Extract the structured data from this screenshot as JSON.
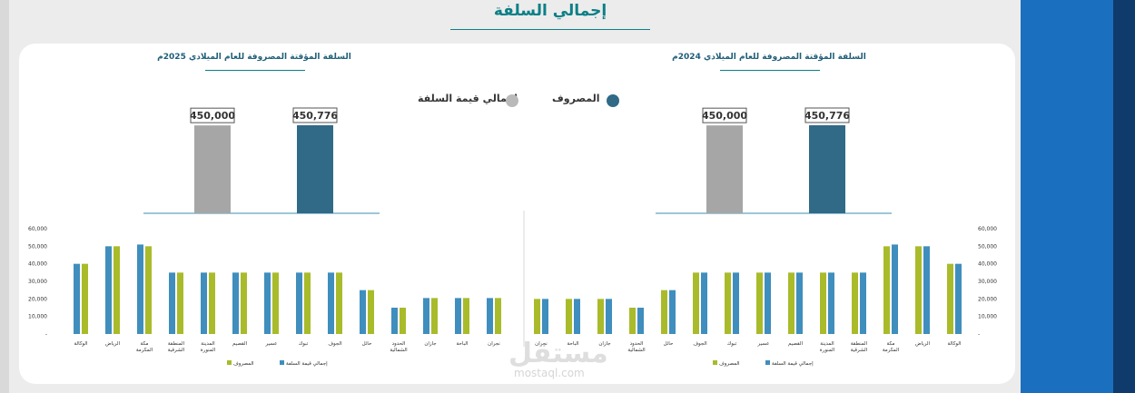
{
  "page_title": "إجمالي السلفة",
  "legend_top": {
    "spent": "المصروف",
    "total": "إجمالي قيمة السلفة"
  },
  "colors": {
    "teal": "#306a87",
    "grey": "#a6a6a6",
    "blue": "#3f8ebd",
    "green": "#a9bb2a",
    "title": "#0b7f86"
  },
  "watermark": {
    "arabic": "مستقل",
    "latin": "mostaql.com"
  },
  "chart_data": [
    {
      "type": "bar",
      "title": "السلفة المؤقتة المصروفة للعام الميلادي 2025م",
      "categories": [
        "المصروف",
        "إجمالي قيمة السلفة"
      ],
      "values": [
        450776,
        450000
      ],
      "labels": [
        "450,776",
        "450,000"
      ]
    },
    {
      "type": "bar",
      "title": "السلفة المؤقتة المصروفة للعام الميلادي 2024م",
      "categories": [
        "المصروف",
        "إجمالي قيمة السلفة"
      ],
      "values": [
        450776,
        450000
      ],
      "labels": [
        "450,776",
        "450,000"
      ]
    },
    {
      "type": "bar",
      "categories": [
        "الوكالة",
        "الرياض",
        "مكة المكرمة",
        "المنطقة الشرقية",
        "المدينة المنورة",
        "القصيم",
        "عسير",
        "تبوك",
        "الجوف",
        "حائل",
        "الحدود الشمالية",
        "جازان",
        "الباحة",
        "نجران"
      ],
      "series": [
        {
          "name": "إجمالي قيمة السلفة",
          "values": [
            40000,
            50000,
            50000,
            35000,
            35000,
            35000,
            35000,
            35000,
            35000,
            25000,
            15000,
            20500,
            20500,
            20500
          ]
        },
        {
          "name": "المصروف",
          "values": [
            40000,
            50000,
            51000,
            35000,
            35000,
            35000,
            35000,
            35000,
            35000,
            25000,
            15000,
            20500,
            20500,
            20500
          ]
        }
      ],
      "ylim": [
        0,
        60000
      ],
      "yticks": [
        "-",
        "10,000",
        "20,000",
        "30,000",
        "40,000",
        "50,000",
        "60,000"
      ],
      "orientation": "rtl"
    },
    {
      "type": "bar",
      "categories": [
        "الوكالة",
        "الرياض",
        "مكة المكرمة",
        "المنطقة الشرقية",
        "المدينة المنورة",
        "القصيم",
        "عسير",
        "تبوك",
        "الجوف",
        "حائل",
        "الحدود الشمالية",
        "جازان",
        "الباحة",
        "نجران"
      ],
      "series": [
        {
          "name": "إجمالي قيمة السلفة",
          "values": [
            40000,
            50000,
            50000,
            35000,
            35000,
            35000,
            35000,
            35000,
            35000,
            25000,
            15000,
            20000,
            20000,
            20000
          ]
        },
        {
          "name": "المصروف",
          "values": [
            40000,
            50000,
            51000,
            35000,
            35000,
            35000,
            35000,
            35000,
            35000,
            25000,
            15000,
            20000,
            20000,
            20000
          ]
        }
      ],
      "ylim": [
        0,
        60000
      ],
      "yticks": [
        "-",
        "10,000",
        "20,000",
        "30,000",
        "40,000",
        "50,000",
        "60,000"
      ],
      "orientation": "ltr"
    }
  ]
}
